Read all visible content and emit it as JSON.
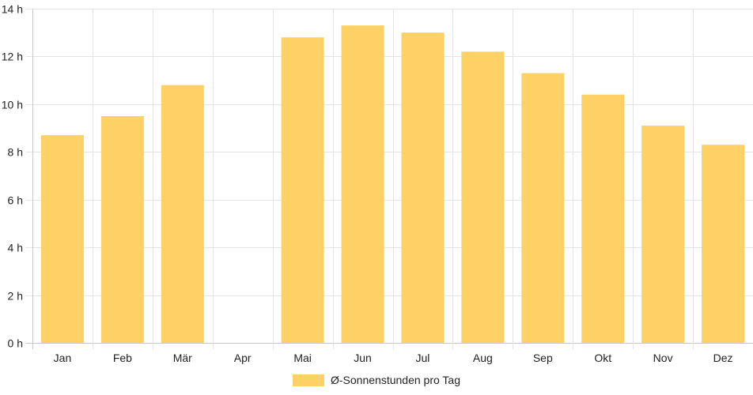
{
  "chart_data": {
    "type": "bar",
    "categories": [
      "Jan",
      "Feb",
      "Mär",
      "Apr",
      "Mai",
      "Jun",
      "Jul",
      "Aug",
      "Sep",
      "Okt",
      "Nov",
      "Dez"
    ],
    "series": [
      {
        "name": "Ø-Sonnenstunden pro Tag",
        "values": [
          8.7,
          9.5,
          10.8,
          null,
          12.8,
          13.3,
          13.0,
          12.2,
          11.3,
          10.4,
          9.1,
          8.3
        ]
      }
    ],
    "y_ticks": [
      0,
      2,
      4,
      6,
      8,
      10,
      12,
      14
    ],
    "y_tick_labels": [
      "0 h",
      "2 h",
      "4 h",
      "6 h",
      "8 h",
      "10 h",
      "12 h",
      "14 h"
    ],
    "ylim": [
      0,
      14
    ],
    "grid": true,
    "legend_position": "bottom-center",
    "colors": {
      "bar": "#fdd166",
      "grid": "#e5e5e5",
      "axis": "#c8c8c8",
      "text": "#222222"
    }
  }
}
